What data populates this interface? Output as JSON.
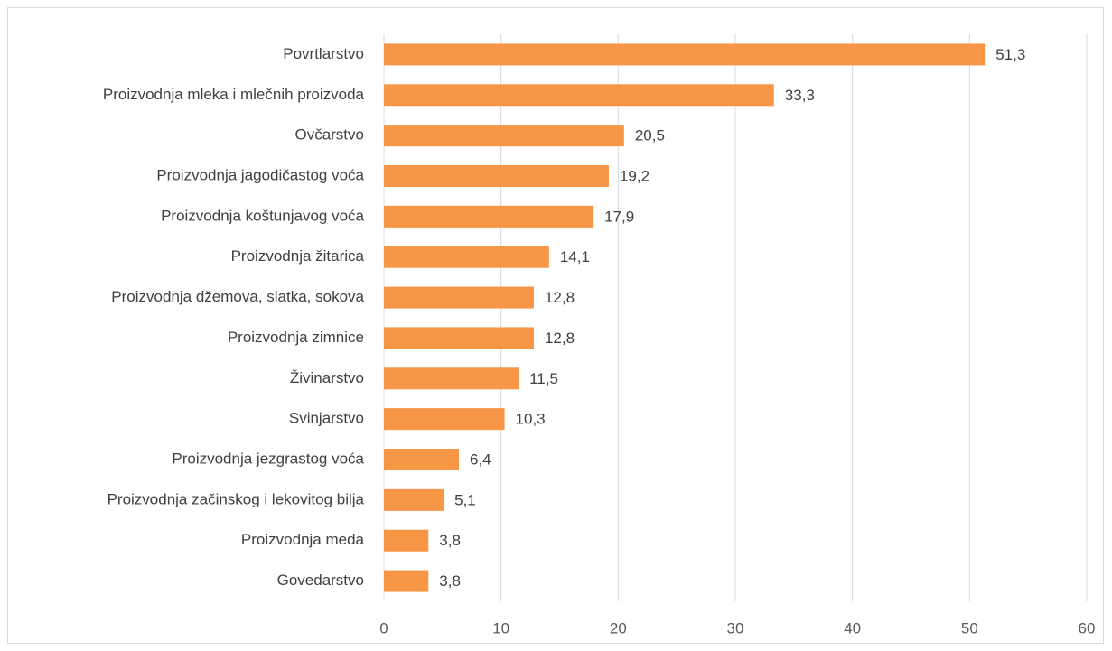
{
  "chart_data": {
    "type": "bar",
    "orientation": "horizontal",
    "categories": [
      "Povrtlarstvo",
      "Proizvodnja mleka i mlečnih proizvoda",
      "Ovčarstvo",
      "Proizvodnja jagodičastog voća",
      "Proizvodnja koštunjavog voća",
      "Proizvodnja žitarica",
      "Proizvodnja džemova, slatka, sokova",
      "Proizvodnja zimnice",
      "Živinarstvo",
      "Svinjarstvo",
      "Proizvodnja jezgrastog voća",
      "Proizvodnja začinskog i lekovitog bilja",
      "Proizvodnja meda",
      "Govedarstvo"
    ],
    "values": [
      51.3,
      33.3,
      20.5,
      19.2,
      17.9,
      14.1,
      12.8,
      12.8,
      11.5,
      10.3,
      6.4,
      5.1,
      3.8,
      3.8
    ],
    "value_labels": [
      "51,3",
      "33,3",
      "20,5",
      "19,2",
      "17,9",
      "14,1",
      "12,8",
      "12,8",
      "11,5",
      "10,3",
      "6,4",
      "5,1",
      "3,8",
      "3,8"
    ],
    "color": "#f79646",
    "xlim": [
      0,
      60
    ],
    "xticks": [
      0,
      10,
      20,
      30,
      40,
      50,
      60
    ],
    "grid": true
  }
}
